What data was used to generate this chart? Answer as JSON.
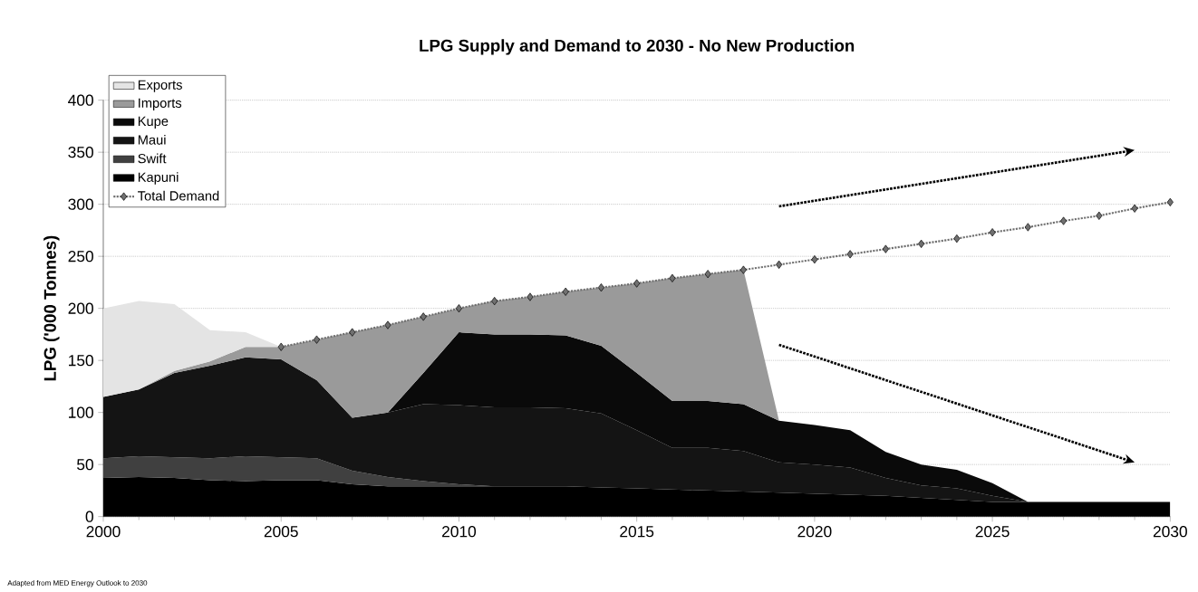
{
  "chart_data": {
    "type": "area",
    "stacked": true,
    "title": "LPG Supply and Demand to 2030 - No New Production",
    "ylabel": "LPG ('000 Tonnes)",
    "x": [
      2000,
      2001,
      2002,
      2003,
      2004,
      2005,
      2006,
      2007,
      2008,
      2009,
      2010,
      2011,
      2012,
      2013,
      2014,
      2015,
      2016,
      2017,
      2018,
      2019,
      2020,
      2021,
      2022,
      2023,
      2024,
      2025,
      2026,
      2027,
      2028,
      2029,
      2030
    ],
    "series": [
      {
        "name": "Kapuni",
        "color": "#000000",
        "values": [
          37,
          38,
          37,
          35,
          34,
          35,
          35,
          31,
          29,
          29,
          29,
          29,
          29,
          29,
          28,
          27,
          26,
          25,
          24,
          23,
          22,
          21,
          20,
          18,
          16,
          14,
          14,
          14,
          14,
          14,
          14
        ]
      },
      {
        "name": "Swift",
        "color": "#404040",
        "values": [
          19,
          20,
          20,
          21,
          24,
          22,
          21,
          13,
          9,
          5,
          2,
          0,
          0,
          0,
          0,
          0,
          0,
          0,
          0,
          0,
          0,
          0,
          0,
          0,
          0,
          0,
          0,
          0,
          0,
          0,
          0
        ]
      },
      {
        "name": "Maui",
        "color": "#141414",
        "values": [
          59,
          64,
          81,
          89,
          95,
          94,
          75,
          51,
          62,
          74,
          76,
          76,
          76,
          75,
          71,
          56,
          40,
          41,
          39,
          29,
          28,
          26,
          17,
          12,
          11,
          6,
          0,
          0,
          0,
          0,
          0
        ]
      },
      {
        "name": "Kupe",
        "color": "#0a0a0a",
        "values": [
          0,
          0,
          0,
          0,
          0,
          0,
          0,
          0,
          0,
          30,
          70,
          70,
          70,
          70,
          65,
          55,
          45,
          45,
          45,
          40,
          38,
          36,
          25,
          20,
          18,
          12,
          0,
          0,
          0,
          0,
          0
        ]
      },
      {
        "name": "Imports",
        "color": "#9a9a9a",
        "values": [
          0,
          0,
          2,
          4,
          10,
          12,
          39,
          82,
          84,
          54,
          23,
          32,
          36,
          42,
          56,
          86,
          118,
          122,
          129,
          0,
          0,
          0,
          0,
          0,
          0,
          0,
          0,
          0,
          0,
          0,
          0
        ]
      },
      {
        "name": "Exports",
        "color": "#e4e4e4",
        "values": [
          85,
          85,
          64,
          30,
          14,
          0,
          null,
          null,
          null,
          null,
          null,
          null,
          null,
          null,
          null,
          null,
          null,
          null,
          null,
          null,
          null,
          null,
          null,
          null,
          null,
          null,
          null,
          null,
          null,
          null,
          null
        ]
      },
      {
        "name": "Total Demand",
        "type": "line",
        "color": "#707070",
        "marker": "diamond",
        "line_style": "dotted",
        "values": [
          null,
          null,
          null,
          null,
          null,
          163,
          170,
          177,
          184,
          192,
          200,
          207,
          211,
          216,
          220,
          224,
          229,
          233,
          237,
          242,
          247,
          252,
          257,
          262,
          267,
          273,
          278,
          284,
          289,
          296,
          302
        ]
      }
    ],
    "xlim": [
      2000,
      2030
    ],
    "ylim": [
      0,
      400
    ],
    "xticks": [
      2000,
      2005,
      2010,
      2015,
      2020,
      2025,
      2030
    ],
    "yticks": [
      0,
      50,
      100,
      150,
      200,
      250,
      300,
      350,
      400
    ],
    "grid": "y",
    "legend": "top left",
    "annotations": [
      "Adapted from MED Energy Outlook to 2030"
    ]
  }
}
